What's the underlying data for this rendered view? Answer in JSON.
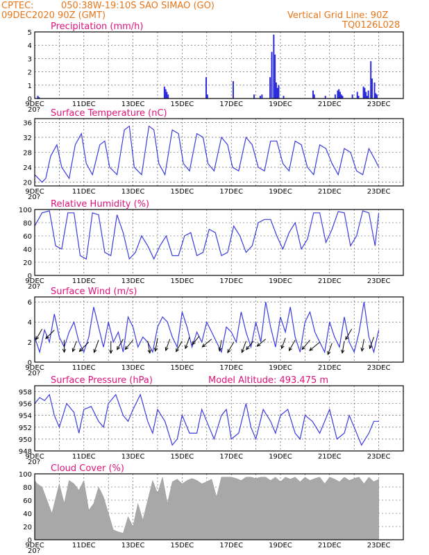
{
  "header": {
    "source": "CPTEC:",
    "location": "050:38W-19:10S  SAO SIMAO (GO)",
    "date": "09DEC2020 90Z (GMT)",
    "grid_note": "Vertical Grid Line: 90Z",
    "model_code": "TQ0126L028"
  },
  "colors": {
    "header": "#e8761a",
    "title": "#e0127a",
    "line": "#3a3adf",
    "cloud": "#a8a8a8",
    "bar": "#2b2bdc"
  },
  "x_ticks": [
    "9DEC",
    "11DEC",
    "13DEC",
    "15DEC",
    "17DEC",
    "19DEC",
    "21DEC",
    "23DEC"
  ],
  "year_fragment": "20?",
  "panels": {
    "precip": {
      "title": "Precipitation (mm/h)"
    },
    "temp": {
      "title": "Surface Temperature (nC)"
    },
    "rh": {
      "title": "Relative Humidity (%)"
    },
    "wind": {
      "title": "Surface Wind (m/s)"
    },
    "press": {
      "title": "Surface Pressure (hPa)",
      "altitude": "Model Altitude: 493.475 m"
    },
    "cloud": {
      "title": "Cloud Cover (%)"
    }
  },
  "chart_data": [
    {
      "type": "bar",
      "title": "Precipitation (mm/h)",
      "xlabel": "",
      "ylabel": "",
      "x_unit": "days since 09DEC",
      "ylim": [
        0,
        5
      ],
      "yticks": [
        0,
        1,
        2,
        3,
        4,
        5
      ],
      "x": [
        0.1,
        0.15,
        5.25,
        5.3,
        5.35,
        5.4,
        6.95,
        7.0,
        8.05,
        8.9,
        9.15,
        9.22,
        9.55,
        9.62,
        9.7,
        9.75,
        9.8,
        9.85,
        9.9,
        10.1,
        11.3,
        11.35,
        11.8,
        12.2,
        12.3,
        12.35,
        12.4,
        12.45,
        12.5,
        12.9,
        13.1,
        13.15,
        13.35,
        13.4,
        13.45,
        13.5,
        13.55,
        13.65,
        13.7,
        13.8,
        13.85,
        13.9
      ],
      "values": [
        0.2,
        0.1,
        0.9,
        0.7,
        0.5,
        0.3,
        1.6,
        0.3,
        1.3,
        0.3,
        0.2,
        0.3,
        1.6,
        3.5,
        4.8,
        3.3,
        1.2,
        0.8,
        1.0,
        0.2,
        0.6,
        0.3,
        0.2,
        0.3,
        0.6,
        0.7,
        0.5,
        0.3,
        0.2,
        0.3,
        0.5,
        0.2,
        0.9,
        0.8,
        0.5,
        0.2,
        0.6,
        2.8,
        1.5,
        1.2,
        0.4,
        0.3
      ]
    },
    {
      "type": "line",
      "title": "Surface Temperature (nC)",
      "ylim": [
        19,
        37
      ],
      "yticks": [
        20,
        24,
        28,
        32,
        36
      ],
      "x": [
        0,
        0.15,
        0.3,
        0.45,
        0.65,
        0.9,
        1.1,
        1.4,
        1.65,
        1.9,
        2.1,
        2.35,
        2.65,
        2.85,
        3.05,
        3.35,
        3.65,
        3.85,
        4.05,
        4.35,
        4.65,
        4.85,
        5.05,
        5.3,
        5.6,
        5.85,
        6.05,
        6.3,
        6.6,
        6.85,
        7.05,
        7.3,
        7.6,
        7.85,
        8.05,
        8.3,
        8.6,
        8.85,
        9.1,
        9.35,
        9.6,
        9.85,
        10.1,
        10.35,
        10.6,
        10.85,
        11.1,
        11.35,
        11.6,
        11.85,
        12.1,
        12.35,
        12.6,
        12.85,
        13.1,
        13.35,
        13.6,
        13.85,
        14.0
      ],
      "values": [
        22,
        21,
        20,
        21,
        27,
        30,
        24,
        21,
        30,
        33,
        25,
        22,
        30,
        31,
        24,
        22,
        34,
        35,
        24,
        22,
        35,
        34,
        25,
        22,
        34,
        33,
        25,
        23,
        33,
        32,
        25,
        23,
        32,
        30,
        24,
        23,
        32,
        30,
        24,
        23,
        31,
        31,
        25,
        23,
        31,
        30,
        24,
        22,
        30,
        29,
        25,
        22,
        29,
        28,
        23,
        22,
        29,
        26,
        24
      ]
    },
    {
      "type": "line",
      "title": "Relative Humidity (%)",
      "ylim": [
        0,
        100
      ],
      "yticks": [
        0,
        20,
        40,
        60,
        80,
        100
      ],
      "x": [
        0,
        0.3,
        0.6,
        0.85,
        1.1,
        1.35,
        1.6,
        1.85,
        2.1,
        2.35,
        2.6,
        2.85,
        3.1,
        3.35,
        3.6,
        3.85,
        4.1,
        4.35,
        4.6,
        4.85,
        5.1,
        5.35,
        5.6,
        5.85,
        6.1,
        6.35,
        6.6,
        6.85,
        7.1,
        7.35,
        7.6,
        7.85,
        8.1,
        8.35,
        8.6,
        8.85,
        9.1,
        9.35,
        9.6,
        9.85,
        10.1,
        10.35,
        10.6,
        10.85,
        11.1,
        11.35,
        11.6,
        11.85,
        12.1,
        12.35,
        12.6,
        12.85,
        13.1,
        13.35,
        13.6,
        13.85,
        14.0
      ],
      "values": [
        75,
        95,
        98,
        45,
        40,
        95,
        95,
        30,
        25,
        95,
        92,
        35,
        30,
        92,
        65,
        25,
        35,
        60,
        45,
        25,
        45,
        60,
        30,
        30,
        60,
        65,
        30,
        35,
        70,
        65,
        30,
        35,
        75,
        60,
        35,
        45,
        80,
        85,
        85,
        60,
        40,
        65,
        80,
        40,
        55,
        95,
        95,
        50,
        70,
        97,
        95,
        45,
        60,
        98,
        95,
        45,
        95
      ]
    },
    {
      "type": "line",
      "title": "Surface Wind (m/s)",
      "ylim": [
        0,
        6.5
      ],
      "yticks": [
        0,
        2,
        4,
        6
      ],
      "x": [
        0,
        0.2,
        0.4,
        0.6,
        0.8,
        1.0,
        1.2,
        1.4,
        1.6,
        1.8,
        2.0,
        2.2,
        2.4,
        2.6,
        2.8,
        3.0,
        3.2,
        3.4,
        3.6,
        3.8,
        4.0,
        4.2,
        4.4,
        4.6,
        4.8,
        5.0,
        5.2,
        5.4,
        5.6,
        5.8,
        6.0,
        6.2,
        6.4,
        6.6,
        6.8,
        7.0,
        7.2,
        7.4,
        7.6,
        7.8,
        8.0,
        8.2,
        8.4,
        8.6,
        8.8,
        9.0,
        9.2,
        9.4,
        9.6,
        9.8,
        10.0,
        10.2,
        10.4,
        10.6,
        10.8,
        11.0,
        11.2,
        11.4,
        11.6,
        11.8,
        12.0,
        12.2,
        12.4,
        12.6,
        12.8,
        13.0,
        13.2,
        13.4,
        13.6,
        13.8,
        14.0
      ],
      "values": [
        2.5,
        1.0,
        3.2,
        2.0,
        4.8,
        2.5,
        1.5,
        3.0,
        4.0,
        2.0,
        1.0,
        2.5,
        5.5,
        3.5,
        1.5,
        4.0,
        2.0,
        3.0,
        1.0,
        4.5,
        3.5,
        1.5,
        2.5,
        2.0,
        1.0,
        3.5,
        4.5,
        4.0,
        2.5,
        1.5,
        5.0,
        3.5,
        1.5,
        3.0,
        2.0,
        4.0,
        3.0,
        2.0,
        1.0,
        3.5,
        3.0,
        2.0,
        5.0,
        3.0,
        1.5,
        4.0,
        2.0,
        6.0,
        3.5,
        1.5,
        4.5,
        3.0,
        5.5,
        2.5,
        1.0,
        4.0,
        5.0,
        3.0,
        2.0,
        1.0,
        4.0,
        2.5,
        1.5,
        4.5,
        2.0,
        1.0,
        3.0,
        6.0,
        2.5,
        1.0,
        3.2
      ]
    },
    {
      "type": "line",
      "title": "Surface Pressure (hPa)",
      "ylim": [
        948,
        959
      ],
      "yticks": [
        948,
        950,
        952,
        954,
        956,
        958
      ],
      "x": [
        0,
        0.2,
        0.4,
        0.6,
        0.8,
        1.0,
        1.3,
        1.6,
        1.8,
        2.0,
        2.3,
        2.6,
        2.8,
        3.0,
        3.3,
        3.6,
        3.8,
        4.0,
        4.3,
        4.6,
        4.8,
        5.0,
        5.3,
        5.6,
        5.8,
        6.0,
        6.3,
        6.6,
        6.8,
        7.0,
        7.3,
        7.6,
        7.8,
        8.0,
        8.3,
        8.6,
        8.8,
        9.0,
        9.3,
        9.6,
        9.8,
        10.0,
        10.3,
        10.6,
        10.8,
        11.0,
        11.3,
        11.6,
        11.8,
        12.0,
        12.3,
        12.6,
        12.8,
        13.0,
        13.3,
        13.6,
        13.8,
        14.0
      ],
      "values": [
        956,
        957,
        956.5,
        957.5,
        954,
        952,
        956,
        954.5,
        951,
        955,
        955.5,
        953,
        952,
        956,
        957.5,
        954,
        953,
        955,
        957.5,
        953,
        951,
        955,
        953,
        949,
        950,
        954,
        951,
        951,
        955,
        953,
        950,
        954,
        955,
        950,
        951,
        956,
        952,
        950,
        955,
        953,
        951,
        954,
        955,
        951,
        950,
        954,
        953,
        951,
        953,
        955,
        950,
        951,
        954,
        952,
        949,
        951,
        953,
        953
      ]
    },
    {
      "type": "area",
      "title": "Cloud Cover (%)",
      "ylim": [
        0,
        100
      ],
      "yticks": [
        0,
        20,
        40,
        60,
        80,
        100
      ],
      "x": [
        0,
        0.1,
        0.3,
        0.5,
        0.7,
        0.9,
        1.0,
        1.2,
        1.4,
        1.6,
        1.8,
        2.0,
        2.2,
        2.4,
        2.6,
        2.8,
        3.0,
        3.2,
        3.4,
        3.6,
        3.8,
        4.0,
        4.2,
        4.4,
        4.6,
        4.8,
        5.0,
        5.2,
        5.4,
        5.6,
        5.8,
        6.0,
        6.2,
        6.4,
        6.6,
        6.8,
        7.0,
        7.2,
        7.4,
        7.6,
        7.8,
        8.0,
        8.2,
        8.4,
        8.6,
        8.8,
        9.0,
        9.2,
        9.4,
        9.6,
        9.8,
        10.0,
        10.2,
        10.4,
        10.6,
        10.8,
        11.0,
        11.2,
        11.4,
        11.6,
        11.8,
        12.0,
        12.2,
        12.4,
        12.6,
        12.8,
        13.0,
        13.2,
        13.4,
        13.6,
        13.8,
        14.0
      ],
      "values": [
        90,
        85,
        80,
        60,
        40,
        70,
        85,
        55,
        90,
        85,
        75,
        90,
        45,
        55,
        80,
        65,
        40,
        15,
        12,
        10,
        35,
        20,
        55,
        30,
        60,
        90,
        70,
        95,
        55,
        88,
        92,
        85,
        90,
        93,
        90,
        85,
        88,
        92,
        65,
        95,
        95,
        95,
        93,
        90,
        95,
        95,
        93,
        95,
        95,
        90,
        95,
        88,
        95,
        92,
        95,
        88,
        95,
        90,
        93,
        95,
        85,
        95,
        92,
        88,
        95,
        90,
        93,
        95,
        85,
        95,
        88,
        92
      ]
    },
    {
      "type": "scatter",
      "title": "Surface Wind arrows",
      "x": [
        0.3,
        0.8,
        1.2,
        1.7,
        2.2,
        2.6,
        3.1,
        3.6,
        4.0,
        4.6,
        5.0,
        5.5,
        6.0,
        6.3,
        6.7,
        7.2,
        7.6,
        8.1,
        8.6,
        8.9,
        9.4,
        10.2,
        10.6,
        11.2,
        11.6,
        12.1,
        12.6,
        12.9,
        13.4,
        13.8
      ],
      "values": [
        3.3,
        3.2,
        2.2,
        2.1,
        2.0,
        2.2,
        2.1,
        2.3,
        2.2,
        2.1,
        2.4,
        2.3,
        2.1,
        2.5,
        2.6,
        2.3,
        2.2,
        2.0,
        2.1,
        2.1,
        2.3,
        2.4,
        2.2,
        2.2,
        2.0,
        1.9,
        2.1,
        3.3,
        2.3,
        2.5
      ],
      "direction_deg": [
        210,
        225,
        180,
        200,
        225,
        200,
        180,
        210,
        220,
        170,
        190,
        200,
        210,
        200,
        220,
        230,
        190,
        210,
        200,
        220,
        230,
        200,
        210,
        220,
        230,
        200,
        190,
        210,
        190,
        200
      ],
      "speed": [
        2.5,
        2.5,
        2.5,
        2.0,
        3.0,
        3.0,
        2.5,
        2.5,
        2.5,
        2.5,
        3.0,
        2.5,
        2.5,
        2.5,
        2.0,
        2.5,
        2.0,
        2.5,
        2.5,
        2.0,
        2.0,
        2.0,
        2.5,
        2.5,
        3.0,
        2.5,
        2.5,
        2.5,
        2.5,
        2.5
      ]
    }
  ]
}
